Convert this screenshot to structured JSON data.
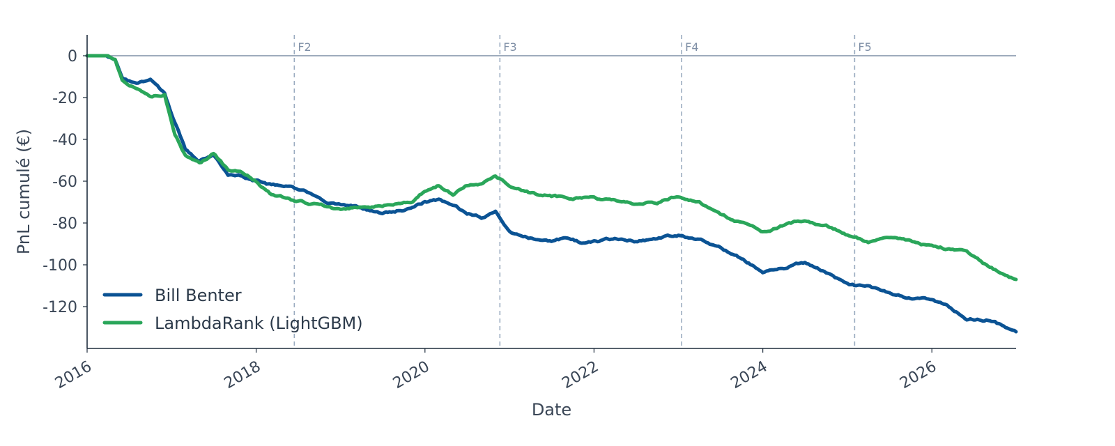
{
  "chart_data": {
    "type": "line",
    "title": "",
    "xlabel": "Date",
    "ylabel": "PnL cumulé (€)",
    "xlim": [
      "2016-01-01",
      "2026-12-31"
    ],
    "ylim": [
      -140,
      10
    ],
    "x_ticks": [
      "2016",
      "2018",
      "2020",
      "2022",
      "2024",
      "2026"
    ],
    "y_ticks": [
      0,
      -20,
      -40,
      -60,
      -80,
      -100,
      -120
    ],
    "grid": false,
    "legend_position": "lower-left",
    "zero_line": {
      "value": 0,
      "color": "#7f8fa6"
    },
    "folds": [
      {
        "label": "F2",
        "date": "2018-06-15"
      },
      {
        "label": "F3",
        "date": "2020-11-20"
      },
      {
        "label": "F4",
        "date": "2023-01-15"
      },
      {
        "label": "F5",
        "date": "2025-02-01"
      }
    ],
    "series": [
      {
        "name": "Bill Benter",
        "color": "#0b5394",
        "x": [
          "2016-01-01",
          "2016-04-01",
          "2016-05-01",
          "2016-06-01",
          "2016-08-01",
          "2016-10-01",
          "2016-12-01",
          "2017-01-15",
          "2017-03-01",
          "2017-05-01",
          "2017-07-01",
          "2017-09-01",
          "2017-11-01",
          "2018-01-01",
          "2018-03-01",
          "2018-06-01",
          "2018-09-01",
          "2018-11-01",
          "2019-01-01",
          "2019-03-01",
          "2019-05-01",
          "2019-07-01",
          "2019-09-01",
          "2019-11-01",
          "2020-01-01",
          "2020-03-01",
          "2020-05-01",
          "2020-07-01",
          "2020-09-01",
          "2020-11-01",
          "2021-01-01",
          "2021-03-01",
          "2021-05-01",
          "2021-07-01",
          "2021-09-01",
          "2021-11-01",
          "2022-01-01",
          "2022-04-01",
          "2022-07-01",
          "2022-10-01",
          "2023-01-01",
          "2023-04-01",
          "2023-07-01",
          "2023-10-01",
          "2024-01-01",
          "2024-04-01",
          "2024-07-01",
          "2024-10-01",
          "2025-01-01",
          "2025-04-01",
          "2025-07-01",
          "2025-10-01",
          "2026-01-01",
          "2026-03-01",
          "2026-06-01",
          "2026-09-01",
          "2026-12-31"
        ],
        "y": [
          0,
          0,
          -2,
          -10,
          -14,
          -12,
          -18,
          -32,
          -45,
          -50,
          -47,
          -57,
          -58,
          -60,
          -62,
          -63,
          -66,
          -69,
          -71,
          -72,
          -74,
          -75,
          -74,
          -73,
          -70,
          -69,
          -71,
          -75,
          -77,
          -75,
          -84,
          -86,
          -88,
          -89,
          -87,
          -89,
          -89,
          -88,
          -89,
          -88,
          -86,
          -88,
          -92,
          -97,
          -103,
          -101,
          -99,
          -104,
          -110,
          -111,
          -114,
          -116,
          -117,
          -119,
          -126,
          -126,
          -132
        ]
      },
      {
        "name": "LambdaRank (LightGBM)",
        "color": "#2aa65a",
        "x": [
          "2016-01-01",
          "2016-04-01",
          "2016-05-01",
          "2016-06-01",
          "2016-08-01",
          "2016-10-01",
          "2016-12-01",
          "2017-01-15",
          "2017-03-01",
          "2017-05-01",
          "2017-07-01",
          "2017-09-01",
          "2017-11-01",
          "2018-01-01",
          "2018-03-01",
          "2018-06-01",
          "2018-09-01",
          "2018-11-01",
          "2019-01-01",
          "2019-03-01",
          "2019-05-01",
          "2019-07-01",
          "2019-09-01",
          "2019-11-01",
          "2020-01-01",
          "2020-03-01",
          "2020-05-01",
          "2020-07-01",
          "2020-09-01",
          "2020-11-01",
          "2021-01-01",
          "2021-03-01",
          "2021-05-01",
          "2021-07-01",
          "2021-09-01",
          "2021-11-01",
          "2022-01-01",
          "2022-04-01",
          "2022-07-01",
          "2022-10-01",
          "2023-01-01",
          "2023-04-01",
          "2023-07-01",
          "2023-10-01",
          "2024-01-01",
          "2024-04-01",
          "2024-07-01",
          "2024-10-01",
          "2025-01-01",
          "2025-04-01",
          "2025-07-01",
          "2025-10-01",
          "2026-01-01",
          "2026-03-01",
          "2026-06-01",
          "2026-09-01",
          "2026-12-31"
        ],
        "y": [
          0,
          0,
          -2,
          -12,
          -16,
          -20,
          -18,
          -38,
          -48,
          -52,
          -47,
          -55,
          -56,
          -60,
          -66,
          -69,
          -71,
          -72,
          -74,
          -73,
          -72,
          -72,
          -71,
          -70,
          -65,
          -62,
          -66,
          -62,
          -62,
          -58,
          -62,
          -64,
          -66,
          -67,
          -68,
          -68,
          -68,
          -70,
          -71,
          -70,
          -67,
          -69,
          -75,
          -80,
          -84,
          -81,
          -79,
          -81,
          -86,
          -89,
          -88,
          -89,
          -91,
          -92,
          -94,
          -101,
          -107
        ]
      }
    ]
  }
}
